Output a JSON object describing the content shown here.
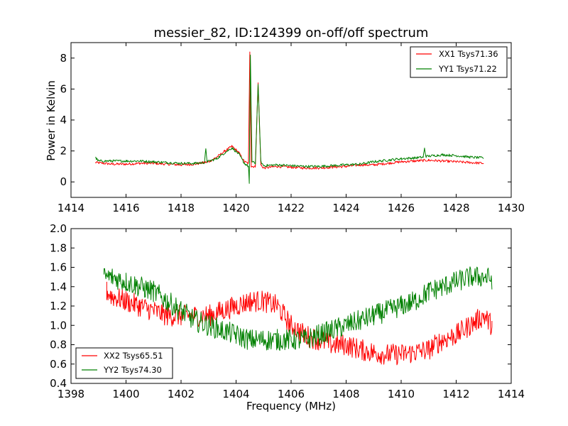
{
  "chart_data": [
    {
      "type": "line",
      "title": "messier_82, ID:124399 on-off/off spectrum",
      "xlabel": "",
      "ylabel": "Power in Kelvin",
      "xlim": [
        1414,
        1430
      ],
      "ylim": [
        -1,
        9
      ],
      "xticks": [
        "1414",
        "1416",
        "1418",
        "1420",
        "1422",
        "1424",
        "1426",
        "1428",
        "1430"
      ],
      "yticks": [
        "0",
        "2",
        "4",
        "6",
        "8"
      ],
      "grid": false,
      "legend_position": "top-right",
      "series": [
        {
          "name": "XX1 Tsys71.36",
          "color": "#ff0000",
          "points": [
            [
              1414.9,
              1.25
            ],
            [
              1415.5,
              1.15
            ],
            [
              1416.0,
              1.15
            ],
            [
              1416.5,
              1.2
            ],
            [
              1417.0,
              1.2
            ],
            [
              1417.5,
              1.15
            ],
            [
              1418.0,
              1.1
            ],
            [
              1418.5,
              1.15
            ],
            [
              1419.0,
              1.3
            ],
            [
              1419.3,
              1.6
            ],
            [
              1419.6,
              2.0
            ],
            [
              1419.85,
              2.3
            ],
            [
              1420.1,
              1.9
            ],
            [
              1420.3,
              1.3
            ],
            [
              1420.45,
              1.2
            ],
            [
              1420.5,
              8.4
            ],
            [
              1420.55,
              1.0
            ],
            [
              1420.7,
              1.0
            ],
            [
              1420.8,
              6.4
            ],
            [
              1420.9,
              1.1
            ],
            [
              1421.0,
              0.9
            ],
            [
              1421.5,
              1.0
            ],
            [
              1422.0,
              0.95
            ],
            [
              1422.5,
              0.9
            ],
            [
              1423.0,
              0.9
            ],
            [
              1423.5,
              0.95
            ],
            [
              1424.0,
              1.0
            ],
            [
              1424.5,
              1.1
            ],
            [
              1425.0,
              1.1
            ],
            [
              1425.5,
              1.2
            ],
            [
              1426.0,
              1.3
            ],
            [
              1426.5,
              1.35
            ],
            [
              1427.0,
              1.4
            ],
            [
              1427.5,
              1.35
            ],
            [
              1428.0,
              1.3
            ],
            [
              1428.5,
              1.25
            ],
            [
              1429.0,
              1.2
            ]
          ]
        },
        {
          "name": "YY1 Tsys71.22",
          "color": "#008000",
          "points": [
            [
              1414.9,
              1.55
            ],
            [
              1415.0,
              1.35
            ],
            [
              1415.5,
              1.35
            ],
            [
              1416.0,
              1.35
            ],
            [
              1416.5,
              1.35
            ],
            [
              1417.0,
              1.3
            ],
            [
              1417.5,
              1.25
            ],
            [
              1418.0,
              1.2
            ],
            [
              1418.5,
              1.2
            ],
            [
              1418.85,
              1.25
            ],
            [
              1418.9,
              2.1
            ],
            [
              1418.95,
              1.3
            ],
            [
              1419.3,
              1.5
            ],
            [
              1419.6,
              1.9
            ],
            [
              1419.85,
              2.2
            ],
            [
              1420.1,
              1.8
            ],
            [
              1420.3,
              1.2
            ],
            [
              1420.45,
              1.0
            ],
            [
              1420.48,
              -0.1
            ],
            [
              1420.52,
              8.2
            ],
            [
              1420.58,
              1.3
            ],
            [
              1420.7,
              1.2
            ],
            [
              1420.8,
              6.3
            ],
            [
              1420.9,
              1.3
            ],
            [
              1421.0,
              1.05
            ],
            [
              1421.5,
              1.1
            ],
            [
              1422.0,
              1.05
            ],
            [
              1422.5,
              1.0
            ],
            [
              1423.0,
              1.0
            ],
            [
              1423.5,
              1.05
            ],
            [
              1424.0,
              1.1
            ],
            [
              1424.5,
              1.15
            ],
            [
              1425.0,
              1.3
            ],
            [
              1425.5,
              1.4
            ],
            [
              1426.0,
              1.5
            ],
            [
              1426.5,
              1.55
            ],
            [
              1426.8,
              1.6
            ],
            [
              1426.85,
              2.15
            ],
            [
              1426.9,
              1.65
            ],
            [
              1427.5,
              1.75
            ],
            [
              1428.0,
              1.7
            ],
            [
              1428.5,
              1.6
            ],
            [
              1429.0,
              1.55
            ]
          ]
        }
      ]
    },
    {
      "type": "line",
      "title": "",
      "xlabel": "Frequency (MHz)",
      "ylabel": "",
      "xlim": [
        1398,
        1414
      ],
      "ylim": [
        0.4,
        2.0
      ],
      "xticks": [
        "1398",
        "1400",
        "1402",
        "1404",
        "1406",
        "1408",
        "1410",
        "1412",
        "1414"
      ],
      "yticks": [
        "0.4",
        "0.6",
        "0.8",
        "1.0",
        "1.2",
        "1.4",
        "1.6",
        "1.8",
        "2.0"
      ],
      "grid": false,
      "legend_position": "bottom-left",
      "series": [
        {
          "name": "XX2 Tsys65.51",
          "color": "#ff0000",
          "points": [
            [
              1399.3,
              1.35
            ],
            [
              1399.5,
              1.3
            ],
            [
              1400.0,
              1.25
            ],
            [
              1400.5,
              1.2
            ],
            [
              1401.0,
              1.15
            ],
            [
              1401.5,
              1.1
            ],
            [
              1402.0,
              1.1
            ],
            [
              1402.5,
              1.1
            ],
            [
              1403.0,
              1.1
            ],
            [
              1403.5,
              1.15
            ],
            [
              1404.0,
              1.2
            ],
            [
              1404.5,
              1.25
            ],
            [
              1405.0,
              1.25
            ],
            [
              1405.5,
              1.2
            ],
            [
              1406.0,
              1.0
            ],
            [
              1406.5,
              0.9
            ],
            [
              1407.0,
              0.85
            ],
            [
              1407.5,
              0.8
            ],
            [
              1408.0,
              0.8
            ],
            [
              1408.5,
              0.75
            ],
            [
              1409.0,
              0.72
            ],
            [
              1409.5,
              0.7
            ],
            [
              1410.0,
              0.7
            ],
            [
              1410.5,
              0.72
            ],
            [
              1411.0,
              0.75
            ],
            [
              1411.5,
              0.85
            ],
            [
              1412.0,
              0.9
            ],
            [
              1412.5,
              1.0
            ],
            [
              1413.0,
              1.1
            ],
            [
              1413.3,
              1.0
            ]
          ]
        },
        {
          "name": "YY2 Tsys74.30",
          "color": "#008000",
          "points": [
            [
              1399.2,
              1.5
            ],
            [
              1399.5,
              1.5
            ],
            [
              1400.0,
              1.45
            ],
            [
              1400.5,
              1.4
            ],
            [
              1401.0,
              1.35
            ],
            [
              1401.5,
              1.25
            ],
            [
              1402.0,
              1.15
            ],
            [
              1402.5,
              1.05
            ],
            [
              1403.0,
              1.0
            ],
            [
              1403.5,
              0.95
            ],
            [
              1404.0,
              0.9
            ],
            [
              1404.5,
              0.85
            ],
            [
              1405.0,
              0.85
            ],
            [
              1405.5,
              0.85
            ],
            [
              1406.0,
              0.85
            ],
            [
              1406.5,
              0.85
            ],
            [
              1407.0,
              0.9
            ],
            [
              1407.5,
              0.95
            ],
            [
              1408.0,
              1.0
            ],
            [
              1408.5,
              1.05
            ],
            [
              1409.0,
              1.1
            ],
            [
              1409.5,
              1.15
            ],
            [
              1410.0,
              1.2
            ],
            [
              1410.5,
              1.25
            ],
            [
              1411.0,
              1.35
            ],
            [
              1411.5,
              1.4
            ],
            [
              1412.0,
              1.45
            ],
            [
              1412.5,
              1.5
            ],
            [
              1413.0,
              1.5
            ],
            [
              1413.3,
              1.48
            ]
          ]
        }
      ]
    }
  ]
}
